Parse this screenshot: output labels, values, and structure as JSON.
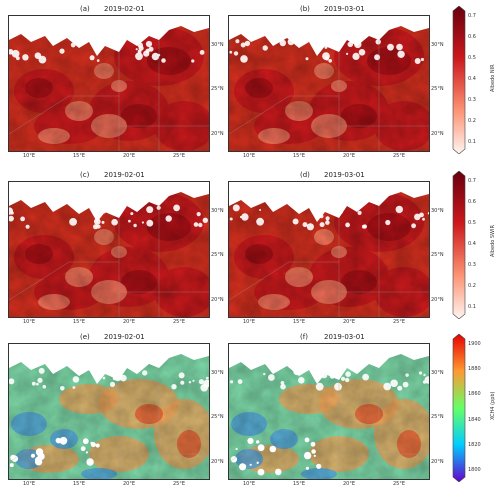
{
  "panels": [
    {
      "label": "(a)",
      "date": "2019-02-01",
      "row": 0,
      "col": 0,
      "ramp": "albedo"
    },
    {
      "label": "(b)",
      "date": "2019-03-01",
      "row": 0,
      "col": 1,
      "ramp": "albedo"
    },
    {
      "label": "(c)",
      "date": "2019-02-01",
      "row": 1,
      "col": 0,
      "ramp": "albedo"
    },
    {
      "label": "(d)",
      "date": "2019-03-01",
      "row": 1,
      "col": 1,
      "ramp": "albedo"
    },
    {
      "label": "(e)",
      "date": "2019-02-01",
      "row": 2,
      "col": 0,
      "ramp": "xch4"
    },
    {
      "label": "(f)",
      "date": "2019-03-01",
      "row": 2,
      "col": 1,
      "ramp": "xch4"
    }
  ],
  "lon_ticks": [
    "10°E",
    "15°E",
    "20°E",
    "25°E"
  ],
  "lat_ticks": [
    "30°N",
    "25°N",
    "20°N"
  ],
  "colorbars": [
    {
      "title": "Albedo NIR",
      "ticks": [
        "0.7",
        "0.6",
        "0.5",
        "0.4",
        "0.3",
        "0.2",
        "0.1"
      ],
      "ramp": "albedo"
    },
    {
      "title": "Albedo SWIR",
      "ticks": [
        "0.7",
        "0.6",
        "0.5",
        "0.4",
        "0.3",
        "0.2",
        "0.1"
      ],
      "ramp": "albedo"
    },
    {
      "title": "XCH4 (ppb)",
      "ticks": [
        "1900",
        "1880",
        "1860",
        "1840",
        "1820",
        "1800"
      ],
      "ramp": "xch4"
    }
  ],
  "colors": {
    "albedo_high": "#67000d",
    "albedo_mid": "#cb181d",
    "albedo_low": "#fff5f0",
    "xch4_high": "#e60000",
    "xch4_mid": "#66ff66",
    "xch4_low": "#6600cc",
    "no_data": "#ffffff"
  }
}
